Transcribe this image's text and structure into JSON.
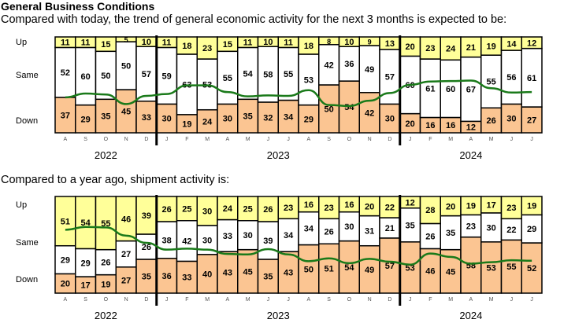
{
  "title": "General Business Conditions",
  "colors": {
    "up": "#ffff99",
    "same": "#ffffff",
    "down": "#fbc592",
    "line": "#1a7a1a"
  },
  "chart_data": [
    {
      "type": "bar",
      "stacked": true,
      "title": "Compared with today, the trend of general economic activity for the next 3 months is expected to be:",
      "row_labels": [
        "Up",
        "Same",
        "Down"
      ],
      "categories": [
        "A",
        "S",
        "O",
        "N",
        "D",
        "J",
        "F",
        "M",
        "A",
        "M",
        "J",
        "J",
        "A",
        "S",
        "O",
        "N",
        "D",
        "J",
        "F",
        "M",
        "A",
        "M",
        "J",
        "J"
      ],
      "years": [
        {
          "label": "2022",
          "start": 0,
          "end": 4
        },
        {
          "label": "2023",
          "start": 5,
          "end": 16
        },
        {
          "label": "2024",
          "start": 17,
          "end": 23
        }
      ],
      "series": [
        {
          "name": "Up",
          "values": [
            11,
            11,
            15,
            5,
            10,
            11,
            18,
            23,
            15,
            11,
            10,
            11,
            18,
            8,
            10,
            9,
            13,
            20,
            23,
            24,
            21,
            19,
            14,
            12
          ]
        },
        {
          "name": "Same",
          "values": [
            52,
            60,
            50,
            50,
            57,
            59,
            63,
            53,
            55,
            54,
            58,
            55,
            53,
            42,
            36,
            49,
            57,
            60,
            61,
            60,
            67,
            55,
            56,
            61
          ]
        },
        {
          "name": "Down",
          "values": [
            37,
            29,
            35,
            45,
            33,
            30,
            19,
            24,
            30,
            35,
            32,
            34,
            29,
            50,
            54,
            42,
            30,
            20,
            16,
            16,
            12,
            26,
            30,
            27
          ]
        }
      ],
      "ylim": [
        0,
        100
      ]
    },
    {
      "type": "bar",
      "stacked": true,
      "title": "Compared to a year ago, shipment activity is:",
      "row_labels": [
        "Up",
        "Same",
        "Down"
      ],
      "categories": [
        "A",
        "S",
        "O",
        "N",
        "D",
        "J",
        "F",
        "M",
        "A",
        "M",
        "J",
        "J",
        "A",
        "S",
        "O",
        "N",
        "D",
        "J",
        "F",
        "M",
        "A",
        "M",
        "J",
        "J"
      ],
      "years": [
        {
          "label": "2022",
          "start": 0,
          "end": 4
        },
        {
          "label": "2023",
          "start": 5,
          "end": 16
        },
        {
          "label": "2024",
          "start": 17,
          "end": 23
        }
      ],
      "series": [
        {
          "name": "Up",
          "values": [
            51,
            54,
            55,
            46,
            39,
            26,
            25,
            30,
            24,
            25,
            26,
            23,
            16,
            23,
            16,
            20,
            22,
            12,
            28,
            20,
            19,
            17,
            23,
            19
          ]
        },
        {
          "name": "Same",
          "values": [
            29,
            29,
            26,
            27,
            26,
            38,
            42,
            30,
            33,
            30,
            39,
            34,
            34,
            26,
            30,
            31,
            21,
            35,
            26,
            35,
            23,
            30,
            22,
            29
          ]
        },
        {
          "name": "Down",
          "values": [
            20,
            17,
            19,
            27,
            35,
            36,
            33,
            40,
            43,
            45,
            35,
            43,
            50,
            51,
            54,
            49,
            57,
            53,
            46,
            45,
            58,
            53,
            55,
            52
          ]
        }
      ],
      "ylim": [
        0,
        100
      ]
    }
  ]
}
